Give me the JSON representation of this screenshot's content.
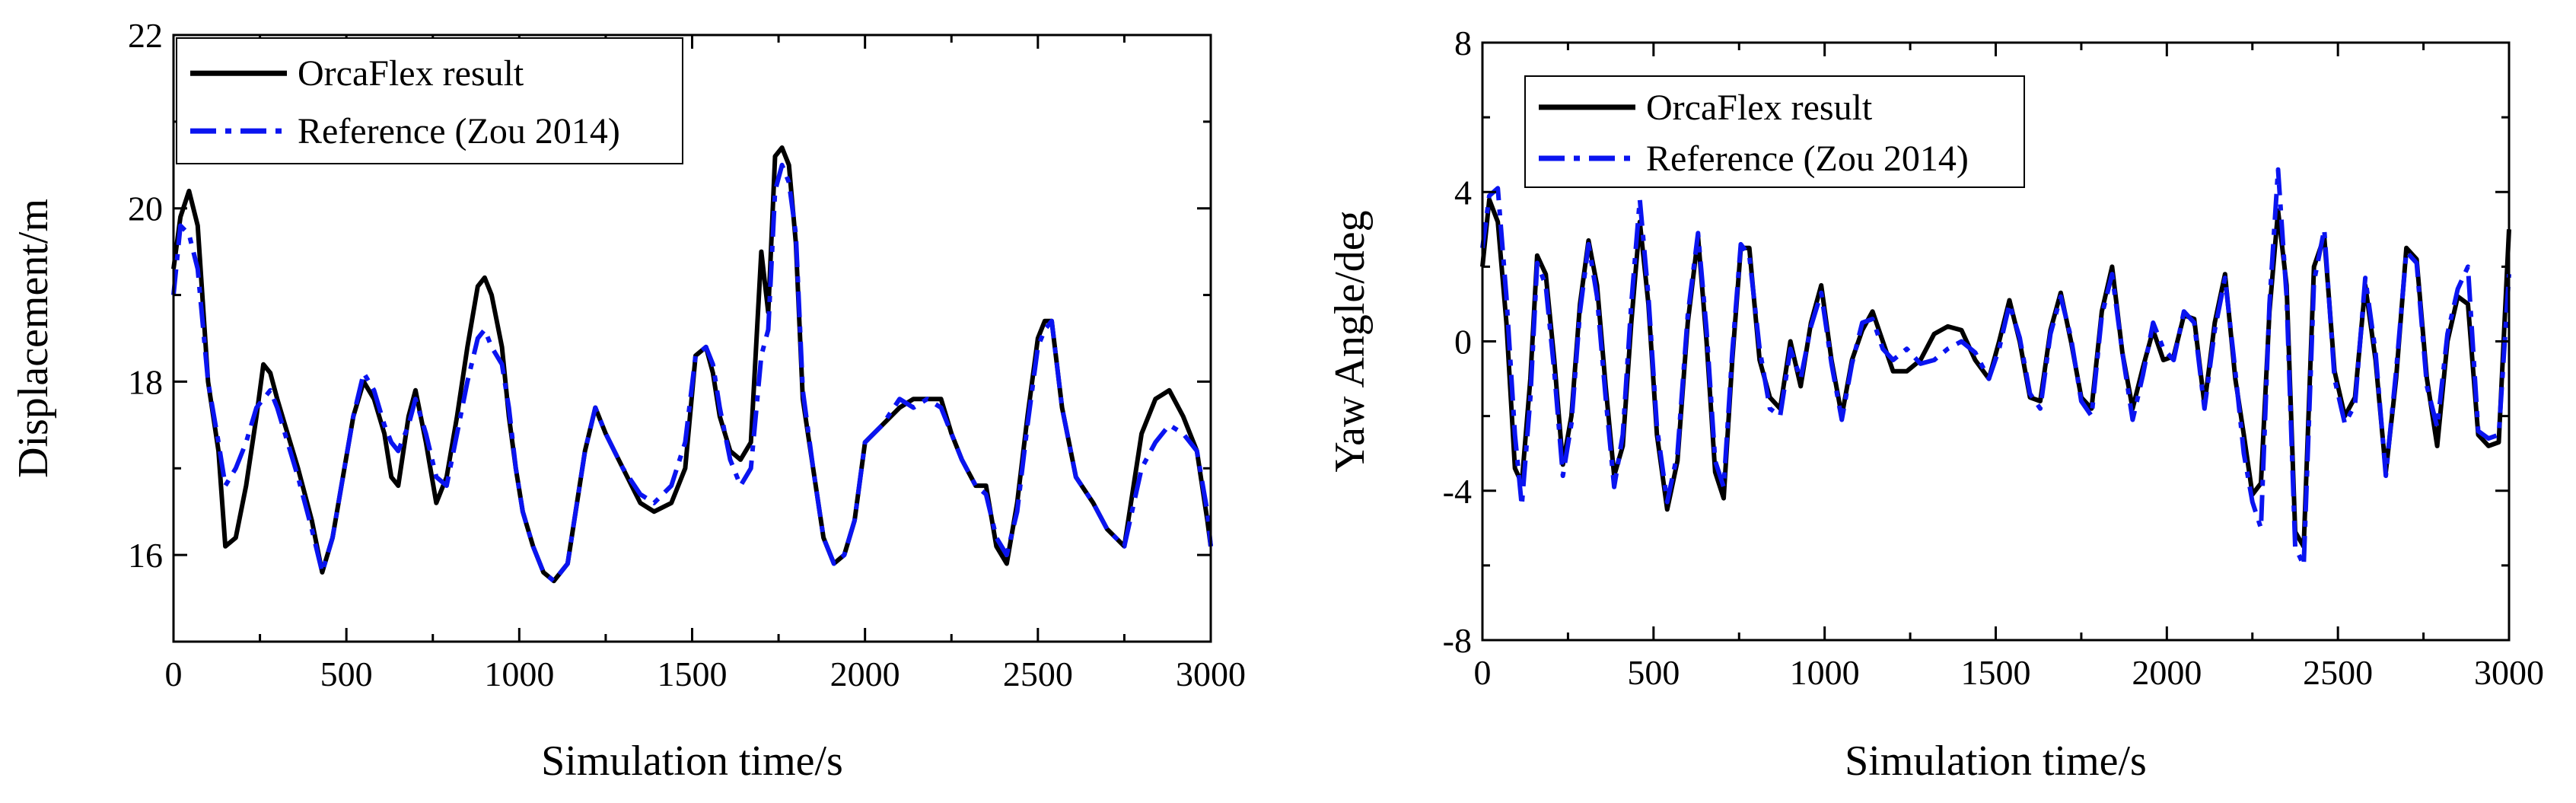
{
  "chart_data": [
    {
      "type": "line",
      "xlabel": "Simulation time/s",
      "ylabel": "Displacement/m",
      "xlim": [
        0,
        3000
      ],
      "ylim": [
        15,
        22
      ],
      "xticks": [
        0,
        500,
        1000,
        1500,
        2000,
        2500,
        3000
      ],
      "yticks": [
        16,
        18,
        20,
        22
      ],
      "legend_position": "top-left",
      "series": [
        {
          "name": "OrcaFlex result",
          "color": "#000000",
          "style": "solid",
          "x": [
            0,
            20,
            45,
            70,
            100,
            130,
            150,
            180,
            210,
            240,
            260,
            280,
            300,
            330,
            360,
            400,
            430,
            460,
            490,
            520,
            550,
            580,
            610,
            630,
            650,
            680,
            700,
            730,
            760,
            790,
            820,
            850,
            880,
            900,
            920,
            950,
            970,
            990,
            1010,
            1040,
            1070,
            1100,
            1140,
            1190,
            1220,
            1250,
            1300,
            1350,
            1390,
            1440,
            1480,
            1510,
            1540,
            1560,
            1580,
            1610,
            1640,
            1670,
            1700,
            1720,
            1740,
            1760,
            1780,
            1800,
            1820,
            1850,
            1880,
            1910,
            1940,
            1970,
            2000,
            2050,
            2100,
            2140,
            2180,
            2220,
            2250,
            2280,
            2320,
            2350,
            2380,
            2410,
            2440,
            2470,
            2500,
            2520,
            2540,
            2570,
            2610,
            2660,
            2700,
            2750,
            2800,
            2840,
            2880,
            2920,
            2960,
            2990,
            3000
          ],
          "values": [
            19.3,
            19.9,
            20.2,
            19.8,
            18.0,
            17.2,
            16.1,
            16.2,
            16.8,
            17.6,
            18.2,
            18.1,
            17.8,
            17.4,
            17.0,
            16.4,
            15.8,
            16.2,
            16.9,
            17.6,
            18.0,
            17.8,
            17.4,
            16.9,
            16.8,
            17.6,
            17.9,
            17.3,
            16.6,
            16.9,
            17.6,
            18.4,
            19.1,
            19.2,
            19.0,
            18.4,
            17.6,
            17.0,
            16.5,
            16.1,
            15.8,
            15.7,
            15.9,
            17.2,
            17.7,
            17.4,
            17.0,
            16.6,
            16.5,
            16.6,
            17.0,
            18.3,
            18.4,
            18.1,
            17.6,
            17.2,
            17.1,
            17.3,
            19.5,
            18.8,
            20.6,
            20.7,
            20.5,
            19.6,
            17.8,
            17.0,
            16.2,
            15.9,
            16.0,
            16.4,
            17.3,
            17.5,
            17.7,
            17.8,
            17.8,
            17.8,
            17.4,
            17.1,
            16.8,
            16.8,
            16.1,
            15.9,
            16.6,
            17.6,
            18.5,
            18.7,
            18.7,
            17.7,
            16.9,
            16.6,
            16.3,
            16.1,
            17.4,
            17.8,
            17.9,
            17.6,
            17.2,
            16.4,
            16.1
          ]
        },
        {
          "name": "Reference (Zou 2014)",
          "color": "#0a14f0",
          "style": "dash-dot",
          "x": [
            0,
            20,
            45,
            70,
            100,
            130,
            150,
            180,
            210,
            240,
            260,
            280,
            300,
            330,
            360,
            400,
            430,
            460,
            490,
            520,
            550,
            580,
            610,
            630,
            650,
            680,
            700,
            730,
            760,
            790,
            820,
            850,
            880,
            900,
            920,
            950,
            970,
            990,
            1010,
            1040,
            1070,
            1100,
            1140,
            1190,
            1220,
            1250,
            1300,
            1350,
            1390,
            1440,
            1480,
            1510,
            1540,
            1560,
            1580,
            1610,
            1640,
            1670,
            1700,
            1720,
            1740,
            1760,
            1780,
            1800,
            1820,
            1850,
            1880,
            1910,
            1940,
            1970,
            2000,
            2050,
            2100,
            2140,
            2180,
            2220,
            2250,
            2280,
            2320,
            2350,
            2380,
            2410,
            2440,
            2470,
            2500,
            2520,
            2540,
            2570,
            2610,
            2660,
            2700,
            2750,
            2800,
            2840,
            2880,
            2920,
            2960,
            2990,
            3000
          ],
          "values": [
            19.0,
            19.8,
            19.7,
            19.3,
            18.0,
            17.3,
            16.8,
            17.0,
            17.3,
            17.7,
            17.8,
            17.9,
            17.7,
            17.3,
            16.9,
            16.3,
            15.8,
            16.2,
            16.9,
            17.6,
            18.1,
            17.9,
            17.5,
            17.3,
            17.2,
            17.5,
            17.8,
            17.4,
            16.9,
            16.8,
            17.4,
            18.0,
            18.5,
            18.6,
            18.4,
            18.2,
            17.7,
            17.0,
            16.5,
            16.1,
            15.8,
            15.7,
            15.9,
            17.2,
            17.7,
            17.4,
            17.0,
            16.7,
            16.6,
            16.8,
            17.3,
            18.3,
            18.4,
            18.2,
            17.7,
            17.1,
            16.8,
            17.0,
            18.3,
            18.6,
            20.2,
            20.5,
            20.3,
            19.7,
            17.9,
            17.0,
            16.2,
            15.9,
            16.0,
            16.4,
            17.3,
            17.5,
            17.8,
            17.7,
            17.8,
            17.7,
            17.4,
            17.1,
            16.8,
            16.7,
            16.2,
            16.0,
            16.5,
            17.5,
            18.4,
            18.6,
            18.7,
            17.7,
            16.9,
            16.6,
            16.3,
            16.1,
            17.0,
            17.3,
            17.5,
            17.4,
            17.2,
            16.5,
            16.1
          ]
        }
      ]
    },
    {
      "type": "line",
      "xlabel": "Simulation time/s",
      "ylabel": "Yaw Angle/deg",
      "xlim": [
        0,
        3000
      ],
      "ylim": [
        -8,
        8
      ],
      "xticks": [
        0,
        500,
        1000,
        1500,
        2000,
        2500,
        3000
      ],
      "yticks": [
        -8,
        -4,
        0,
        4,
        8
      ],
      "legend_position": "top-left",
      "series": [
        {
          "name": "OrcaFlex result",
          "color": "#000000",
          "style": "solid",
          "x": [
            0,
            20,
            45,
            70,
            95,
            115,
            140,
            160,
            185,
            210,
            235,
            260,
            285,
            310,
            335,
            360,
            385,
            410,
            435,
            460,
            485,
            510,
            540,
            570,
            600,
            630,
            655,
            680,
            705,
            730,
            755,
            780,
            810,
            840,
            870,
            900,
            930,
            960,
            990,
            1020,
            1050,
            1080,
            1110,
            1140,
            1170,
            1200,
            1240,
            1280,
            1320,
            1360,
            1400,
            1440,
            1480,
            1510,
            1540,
            1570,
            1600,
            1630,
            1660,
            1690,
            1720,
            1750,
            1780,
            1810,
            1840,
            1870,
            1900,
            1930,
            1960,
            1990,
            2020,
            2050,
            2080,
            2110,
            2140,
            2170,
            2200,
            2225,
            2250,
            2275,
            2300,
            2325,
            2350,
            2375,
            2400,
            2430,
            2460,
            2490,
            2520,
            2550,
            2580,
            2610,
            2640,
            2670,
            2700,
            2730,
            2760,
            2790,
            2820,
            2850,
            2880,
            2910,
            2940,
            2970,
            3000
          ],
          "values": [
            2.0,
            3.8,
            3.2,
            0.5,
            -3.4,
            -3.8,
            -1.0,
            2.3,
            1.8,
            -0.5,
            -3.3,
            -2.0,
            1.0,
            2.7,
            1.5,
            -1.2,
            -3.6,
            -2.8,
            0.5,
            3.2,
            1.0,
            -2.5,
            -4.5,
            -3.2,
            0.5,
            2.8,
            0.0,
            -3.5,
            -4.2,
            -0.5,
            2.5,
            2.5,
            -0.5,
            -1.5,
            -1.8,
            0.0,
            -1.2,
            0.5,
            1.5,
            -0.5,
            -2.0,
            -0.5,
            0.3,
            0.8,
            0.0,
            -0.8,
            -0.8,
            -0.5,
            0.2,
            0.4,
            0.3,
            -0.5,
            -1.0,
            0.0,
            1.1,
            0.0,
            -1.5,
            -1.6,
            0.3,
            1.3,
            0.0,
            -1.5,
            -1.8,
            0.8,
            2.0,
            -0.3,
            -1.8,
            -0.7,
            0.3,
            -0.5,
            -0.4,
            0.7,
            0.6,
            -1.7,
            0.5,
            1.8,
            -1.0,
            -2.5,
            -4.1,
            -3.8,
            0.8,
            3.5,
            1.5,
            -5.1,
            -5.5,
            2.0,
            2.8,
            -0.8,
            -2.0,
            -1.5,
            1.5,
            -0.5,
            -3.5,
            -1.0,
            2.5,
            2.2,
            -1.0,
            -2.8,
            0.0,
            1.2,
            1.0,
            -2.5,
            -2.8,
            -2.7,
            3.0
          ]
        },
        {
          "name": "Reference (Zou 2014)",
          "color": "#0a14f0",
          "style": "dash-dot",
          "x": [
            0,
            20,
            45,
            70,
            95,
            115,
            140,
            160,
            185,
            210,
            235,
            260,
            285,
            310,
            335,
            360,
            385,
            410,
            435,
            460,
            485,
            510,
            540,
            570,
            600,
            630,
            655,
            680,
            705,
            730,
            755,
            780,
            810,
            840,
            870,
            900,
            930,
            960,
            990,
            1020,
            1050,
            1080,
            1110,
            1140,
            1170,
            1200,
            1240,
            1280,
            1320,
            1360,
            1400,
            1440,
            1480,
            1510,
            1540,
            1570,
            1600,
            1630,
            1660,
            1690,
            1720,
            1750,
            1780,
            1810,
            1840,
            1870,
            1900,
            1930,
            1960,
            1990,
            2020,
            2050,
            2080,
            2110,
            2140,
            2170,
            2200,
            2225,
            2250,
            2275,
            2300,
            2325,
            2350,
            2375,
            2400,
            2430,
            2460,
            2490,
            2520,
            2550,
            2580,
            2610,
            2640,
            2670,
            2700,
            2730,
            2760,
            2790,
            2820,
            2850,
            2880,
            2910,
            2940,
            2970,
            3000
          ],
          "values": [
            2.5,
            3.9,
            4.1,
            1.2,
            -2.5,
            -4.4,
            -1.5,
            2.1,
            1.5,
            -0.8,
            -3.6,
            -2.2,
            0.8,
            2.6,
            1.2,
            -1.5,
            -3.9,
            -2.5,
            1.0,
            3.8,
            1.2,
            -2.3,
            -4.3,
            -3.0,
            0.7,
            2.9,
            0.3,
            -3.2,
            -3.9,
            -0.3,
            2.6,
            2.3,
            -0.2,
            -1.8,
            -2.0,
            -0.2,
            -1.0,
            0.4,
            1.3,
            -0.6,
            -2.1,
            -0.6,
            0.5,
            0.6,
            -0.2,
            -0.5,
            -0.2,
            -0.6,
            -0.5,
            -0.2,
            0.0,
            -0.3,
            -1.0,
            -0.2,
            1.0,
            0.1,
            -1.4,
            -1.8,
            0.2,
            1.2,
            0.1,
            -1.6,
            -2.0,
            0.7,
            1.8,
            -0.3,
            -2.1,
            -0.9,
            0.5,
            -0.2,
            -0.5,
            0.8,
            0.5,
            -1.8,
            0.3,
            1.7,
            -0.8,
            -3.0,
            -4.3,
            -5.0,
            1.0,
            4.6,
            1.2,
            -5.5,
            -6.0,
            1.6,
            3.0,
            -1.0,
            -2.2,
            -1.7,
            1.7,
            -0.3,
            -3.6,
            -0.8,
            2.4,
            2.1,
            -1.2,
            -2.3,
            0.2,
            1.4,
            2.0,
            -2.4,
            -2.6,
            -2.5,
            1.8
          ]
        }
      ]
    }
  ]
}
